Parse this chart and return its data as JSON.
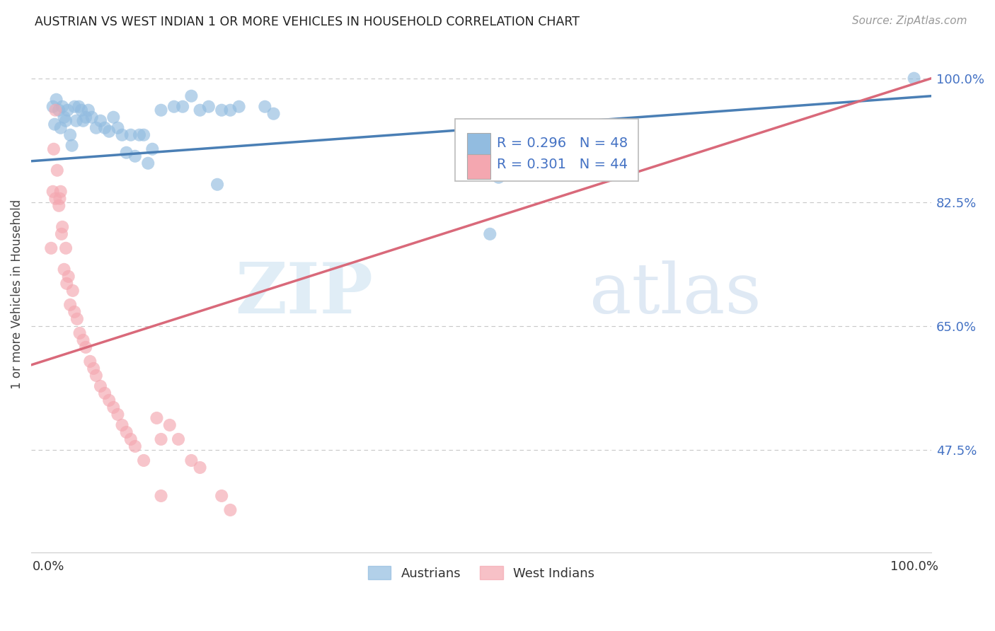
{
  "title": "AUSTRIAN VS WEST INDIAN 1 OR MORE VEHICLES IN HOUSEHOLD CORRELATION CHART",
  "source": "Source: ZipAtlas.com",
  "ylabel": "1 or more Vehicles in Household",
  "background_color": "#ffffff",
  "grid_color": "#c8c8c8",
  "blue_color": "#92bce0",
  "pink_color": "#f4a7b0",
  "blue_line_color": "#4a7fb5",
  "pink_line_color": "#d9697a",
  "watermark_zip": "ZIP",
  "watermark_atlas": "atlas",
  "legend_blue_R": "R = 0.296",
  "legend_blue_N": "N = 48",
  "legend_pink_R": "R = 0.301",
  "legend_pink_N": "N = 44",
  "austrians_label": "Austrians",
  "west_indians_label": "West Indians",
  "blue_line_x0": -0.02,
  "blue_line_y0": 0.883,
  "blue_line_x1": 1.02,
  "blue_line_y1": 0.975,
  "pink_line_x0": -0.02,
  "pink_line_y0": 0.595,
  "pink_line_x1": 1.02,
  "pink_line_y1": 1.0,
  "xlim": [
    -0.02,
    1.02
  ],
  "ylim": [
    0.33,
    1.06
  ],
  "ytick_vals": [
    0.475,
    0.65,
    0.825,
    1.0
  ],
  "ytick_labels": [
    "47.5%",
    "65.0%",
    "82.5%",
    "100.0%"
  ],
  "blue_scatter_x": [
    0.005,
    0.007,
    0.009,
    0.012,
    0.014,
    0.016,
    0.018,
    0.02,
    0.022,
    0.025,
    0.027,
    0.03,
    0.032,
    0.035,
    0.038,
    0.04,
    0.043,
    0.046,
    0.05,
    0.055,
    0.06,
    0.065,
    0.07,
    0.075,
    0.08,
    0.085,
    0.09,
    0.095,
    0.1,
    0.105,
    0.11,
    0.115,
    0.12,
    0.13,
    0.145,
    0.155,
    0.165,
    0.175,
    0.185,
    0.195,
    0.2,
    0.21,
    0.22,
    0.25,
    0.26,
    0.51,
    0.52,
    1.0
  ],
  "blue_scatter_y": [
    0.96,
    0.935,
    0.97,
    0.955,
    0.93,
    0.96,
    0.945,
    0.94,
    0.955,
    0.92,
    0.905,
    0.96,
    0.94,
    0.96,
    0.955,
    0.94,
    0.945,
    0.955,
    0.945,
    0.93,
    0.94,
    0.93,
    0.925,
    0.945,
    0.93,
    0.92,
    0.895,
    0.92,
    0.89,
    0.92,
    0.92,
    0.88,
    0.9,
    0.955,
    0.96,
    0.96,
    0.975,
    0.955,
    0.96,
    0.85,
    0.955,
    0.955,
    0.96,
    0.96,
    0.95,
    0.78,
    0.86,
    1.0
  ],
  "pink_scatter_x": [
    0.003,
    0.005,
    0.006,
    0.008,
    0.008,
    0.01,
    0.012,
    0.013,
    0.014,
    0.015,
    0.016,
    0.018,
    0.02,
    0.021,
    0.023,
    0.025,
    0.028,
    0.03,
    0.033,
    0.036,
    0.04,
    0.043,
    0.048,
    0.052,
    0.055,
    0.06,
    0.065,
    0.07,
    0.075,
    0.08,
    0.085,
    0.09,
    0.095,
    0.1,
    0.11,
    0.125,
    0.13,
    0.14,
    0.15,
    0.165,
    0.175,
    0.2,
    0.21,
    0.13
  ],
  "pink_scatter_y": [
    0.76,
    0.84,
    0.9,
    0.955,
    0.83,
    0.87,
    0.82,
    0.83,
    0.84,
    0.78,
    0.79,
    0.73,
    0.76,
    0.71,
    0.72,
    0.68,
    0.7,
    0.67,
    0.66,
    0.64,
    0.63,
    0.62,
    0.6,
    0.59,
    0.58,
    0.565,
    0.555,
    0.545,
    0.535,
    0.525,
    0.51,
    0.5,
    0.49,
    0.48,
    0.46,
    0.52,
    0.49,
    0.51,
    0.49,
    0.46,
    0.45,
    0.41,
    0.39,
    0.41
  ]
}
